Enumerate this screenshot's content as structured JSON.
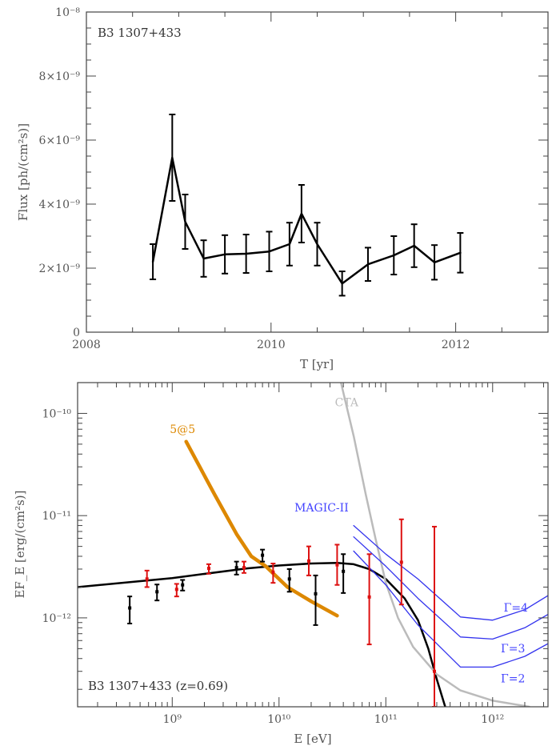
{
  "chart_data": [
    {
      "type": "line",
      "title": "B3 1307+433",
      "xlabel": "T [yr]",
      "ylabel": "Flux [ph/(cm²s)]",
      "xlim": [
        2008,
        2013
      ],
      "ylim": [
        0,
        1e-08
      ],
      "xticks": [
        {
          "value": 2008,
          "label": "2008"
        },
        {
          "value": 2010,
          "label": "2010"
        },
        {
          "value": 2012,
          "label": "2012"
        }
      ],
      "yticks": [
        {
          "value": 0,
          "label": "0"
        },
        {
          "value": 2e-09,
          "label": "2×10⁻⁹"
        },
        {
          "value": 4e-09,
          "label": "4×10⁻⁹"
        },
        {
          "value": 6e-09,
          "label": "6×10⁻⁹"
        },
        {
          "value": 8e-09,
          "label": "8×10⁻⁹"
        },
        {
          "value": 1e-08,
          "label": "10⁻⁸"
        }
      ],
      "series": [
        {
          "color": "#000000",
          "points": [
            {
              "x": 2008.72,
              "y": 2.2e-09,
              "lo": 1.65e-09,
              "hi": 2.75e-09
            },
            {
              "x": 2008.93,
              "y": 5.45e-09,
              "lo": 4.1e-09,
              "hi": 6.8e-09
            },
            {
              "x": 2009.07,
              "y": 3.45e-09,
              "lo": 2.6e-09,
              "hi": 4.3e-09
            },
            {
              "x": 2009.27,
              "y": 2.3e-09,
              "lo": 1.73e-09,
              "hi": 2.87e-09
            },
            {
              "x": 2009.5,
              "y": 2.43e-09,
              "lo": 1.83e-09,
              "hi": 3.03e-09
            },
            {
              "x": 2009.73,
              "y": 2.45e-09,
              "lo": 1.85e-09,
              "hi": 3.05e-09
            },
            {
              "x": 2009.98,
              "y": 2.52e-09,
              "lo": 1.9e-09,
              "hi": 3.14e-09
            },
            {
              "x": 2010.2,
              "y": 2.75e-09,
              "lo": 2.08e-09,
              "hi": 3.42e-09
            },
            {
              "x": 2010.33,
              "y": 3.7e-09,
              "lo": 2.8e-09,
              "hi": 4.6e-09
            },
            {
              "x": 2010.5,
              "y": 2.75e-09,
              "lo": 2.08e-09,
              "hi": 3.42e-09
            },
            {
              "x": 2010.77,
              "y": 1.52e-09,
              "lo": 1.14e-09,
              "hi": 1.9e-09
            },
            {
              "x": 2011.05,
              "y": 2.12e-09,
              "lo": 1.6e-09,
              "hi": 2.64e-09
            },
            {
              "x": 2011.33,
              "y": 2.4e-09,
              "lo": 1.8e-09,
              "hi": 3e-09
            },
            {
              "x": 2011.55,
              "y": 2.7e-09,
              "lo": 2.03e-09,
              "hi": 3.37e-09
            },
            {
              "x": 2011.77,
              "y": 2.18e-09,
              "lo": 1.64e-09,
              "hi": 2.72e-09
            },
            {
              "x": 2012.05,
              "y": 2.48e-09,
              "lo": 1.86e-09,
              "hi": 3.1e-09
            }
          ]
        }
      ]
    },
    {
      "type": "scatter",
      "title": "B3 1307+433 (z=0.69)",
      "xlabel": "E [eV]",
      "ylabel": "EF_E [erg/(cm²s)]",
      "xscale": "log",
      "yscale": "log",
      "xlim": [
        130000000.0,
        3300000000000.0
      ],
      "ylim": [
        1.35e-13,
        2e-10
      ],
      "xticks": [
        {
          "value": 1000000000.0,
          "label": "10⁹"
        },
        {
          "value": 10000000000.0,
          "label": "10¹⁰"
        },
        {
          "value": 100000000000.0,
          "label": "10¹¹"
        },
        {
          "value": 1000000000000.0,
          "label": "10¹²"
        }
      ],
      "yticks": [
        {
          "value": 1e-12,
          "label": "10⁻¹²"
        },
        {
          "value": 1e-11,
          "label": "10⁻¹¹"
        },
        {
          "value": 1e-10,
          "label": "10⁻¹⁰"
        }
      ],
      "annotations": [
        {
          "text": "5@5",
          "x": 1250000000.0,
          "y": 6.4e-11,
          "color": "#dd8800"
        },
        {
          "text": "CTA",
          "x": 43000000000.0,
          "y": 1.18e-10,
          "color": "#bbbbbb"
        },
        {
          "text": "MAGIC-II",
          "x": 25000000000.0,
          "y": 1.1e-11,
          "color": "#4444ff"
        },
        {
          "text": "Γ=4",
          "x": 1650000000000.0,
          "y": 1.15e-12,
          "color": "#4444ff"
        },
        {
          "text": "Γ=3",
          "x": 1550000000000.0,
          "y": 4.6e-13,
          "color": "#4444ff"
        },
        {
          "text": "Γ=2",
          "x": 1550000000000.0,
          "y": 2.35e-13,
          "color": "#4444ff"
        }
      ],
      "series": [
        {
          "color": "#000000",
          "kind": "points",
          "points": [
            {
              "x": 400000000.0,
              "y": 1.25e-12,
              "lo": 8.8e-13,
              "hi": 1.62e-12
            },
            {
              "x": 720000000.0,
              "y": 1.8e-12,
              "lo": 1.48e-12,
              "hi": 2.12e-12
            },
            {
              "x": 1250000000.0,
              "y": 2.1e-12,
              "lo": 1.85e-12,
              "hi": 2.35e-12
            },
            {
              "x": 4000000000.0,
              "y": 3.1e-12,
              "lo": 2.65e-12,
              "hi": 3.55e-12
            },
            {
              "x": 7000000000.0,
              "y": 4.1e-12,
              "lo": 3.55e-12,
              "hi": 4.65e-12
            },
            {
              "x": 12500000000.0,
              "y": 2.4e-12,
              "lo": 1.8e-12,
              "hi": 3e-12
            },
            {
              "x": 22000000000.0,
              "y": 1.72e-12,
              "lo": 8.5e-13,
              "hi": 2.6e-12
            },
            {
              "x": 40000000000.0,
              "y": 2.85e-12,
              "lo": 1.75e-12,
              "hi": 4.2e-12
            }
          ]
        },
        {
          "color": "#dd1111",
          "kind": "points",
          "points": [
            {
              "x": 580000000.0,
              "y": 2.4e-12,
              "lo": 2e-12,
              "hi": 2.9e-12
            },
            {
              "x": 1100000000.0,
              "y": 1.9e-12,
              "lo": 1.62e-12,
              "hi": 2.15e-12
            },
            {
              "x": 2200000000.0,
              "y": 3.05e-12,
              "lo": 2.7e-12,
              "hi": 3.35e-12
            },
            {
              "x": 4700000000.0,
              "y": 3.1e-12,
              "lo": 2.75e-12,
              "hi": 3.55e-12
            },
            {
              "x": 8800000000.0,
              "y": 2.8e-12,
              "lo": 2.2e-12,
              "hi": 3.4e-12
            },
            {
              "x": 19000000000.0,
              "y": 3.6e-12,
              "lo": 2.6e-12,
              "hi": 5e-12
            },
            {
              "x": 35000000000.0,
              "y": 3.3e-12,
              "lo": 2.1e-12,
              "hi": 5.2e-12
            },
            {
              "x": 70000000000.0,
              "y": 1.6e-12,
              "lo": 5.5e-13,
              "hi": 4.2e-12
            },
            {
              "x": 140000000000.0,
              "y": 3.5e-12,
              "lo": 1.35e-12,
              "hi": 9.2e-12
            },
            {
              "x": 285000000000.0,
              "y": 3e-13,
              "lo": 1.35e-13,
              "hi": 7.8e-12
            }
          ]
        },
        {
          "color": "#000000",
          "kind": "curve",
          "width": 2.5,
          "points": [
            {
              "x": 130000000.0,
              "y": 2e-12
            },
            {
              "x": 1000000000.0,
              "y": 2.45e-12
            },
            {
              "x": 5000000000.0,
              "y": 3.05e-12
            },
            {
              "x": 10000000000.0,
              "y": 3.25e-12
            },
            {
              "x": 20000000000.0,
              "y": 3.4e-12
            },
            {
              "x": 35000000000.0,
              "y": 3.45e-12
            },
            {
              "x": 50000000000.0,
              "y": 3.35e-12
            },
            {
              "x": 70000000000.0,
              "y": 3e-12
            },
            {
              "x": 100000000000.0,
              "y": 2.4e-12
            },
            {
              "x": 150000000000.0,
              "y": 1.55e-12
            },
            {
              "x": 200000000000.0,
              "y": 9.5e-13
            },
            {
              "x": 250000000000.0,
              "y": 5e-13
            },
            {
              "x": 300000000000.0,
              "y": 2.5e-13
            },
            {
              "x": 360000000000.0,
              "y": 1.35e-13
            }
          ]
        },
        {
          "color": "#dd8800",
          "kind": "curve",
          "width": 4.5,
          "points": [
            {
              "x": 1350000000.0,
              "y": 5.3e-11
            },
            {
              "x": 2500000000.0,
              "y": 1.6e-11
            },
            {
              "x": 4000000000.0,
              "y": 6.6e-12
            },
            {
              "x": 5500000000.0,
              "y": 4e-12
            },
            {
              "x": 7500000000.0,
              "y": 3.2e-12
            },
            {
              "x": 12000000000.0,
              "y": 2e-12
            },
            {
              "x": 20000000000.0,
              "y": 1.45e-12
            },
            {
              "x": 35000000000.0,
              "y": 1.05e-12
            }
          ]
        },
        {
          "color": "#bbbbbb",
          "kind": "curve",
          "width": 2.5,
          "points": [
            {
              "x": 38000000000.0,
              "y": 2e-10
            },
            {
              "x": 50000000000.0,
              "y": 6e-11
            },
            {
              "x": 65000000000.0,
              "y": 1.6e-11
            },
            {
              "x": 80000000000.0,
              "y": 6e-12
            },
            {
              "x": 100000000000.0,
              "y": 2.2e-12
            },
            {
              "x": 130000000000.0,
              "y": 1e-12
            },
            {
              "x": 180000000000.0,
              "y": 5.2e-13
            },
            {
              "x": 300000000000.0,
              "y": 2.8e-13
            },
            {
              "x": 500000000000.0,
              "y": 1.95e-13
            },
            {
              "x": 1000000000000.0,
              "y": 1.55e-13
            },
            {
              "x": 2200000000000.0,
              "y": 1.35e-13
            }
          ]
        },
        {
          "color": "#3333ee",
          "kind": "curve",
          "width": 1.3,
          "points": [
            {
              "x": 50000000000.0,
              "y": 8e-12
            },
            {
              "x": 100000000000.0,
              "y": 4.2e-12
            },
            {
              "x": 200000000000.0,
              "y": 2.4e-12
            },
            {
              "x": 500000000000.0,
              "y": 1.02e-12
            },
            {
              "x": 1000000000000.0,
              "y": 9.5e-13
            },
            {
              "x": 2000000000000.0,
              "y": 1.2e-12
            },
            {
              "x": 3300000000000.0,
              "y": 1.65e-12
            }
          ]
        },
        {
          "color": "#3333ee",
          "kind": "curve",
          "width": 1.3,
          "points": [
            {
              "x": 50000000000.0,
              "y": 6.2e-12
            },
            {
              "x": 100000000000.0,
              "y": 3.2e-12
            },
            {
              "x": 200000000000.0,
              "y": 1.55e-12
            },
            {
              "x": 500000000000.0,
              "y": 6.5e-13
            },
            {
              "x": 1000000000000.0,
              "y": 6.2e-13
            },
            {
              "x": 2000000000000.0,
              "y": 8e-13
            },
            {
              "x": 3300000000000.0,
              "y": 1.08e-12
            }
          ]
        },
        {
          "color": "#3333ee",
          "kind": "curve",
          "width": 1.3,
          "points": [
            {
              "x": 50000000000.0,
              "y": 4.5e-12
            },
            {
              "x": 100000000000.0,
              "y": 2.1e-12
            },
            {
              "x": 200000000000.0,
              "y": 8.5e-13
            },
            {
              "x": 500000000000.0,
              "y": 3.3e-13
            },
            {
              "x": 1000000000000.0,
              "y": 3.3e-13
            },
            {
              "x": 2000000000000.0,
              "y": 4.2e-13
            },
            {
              "x": 3300000000000.0,
              "y": 5.6e-13
            }
          ]
        }
      ]
    }
  ]
}
